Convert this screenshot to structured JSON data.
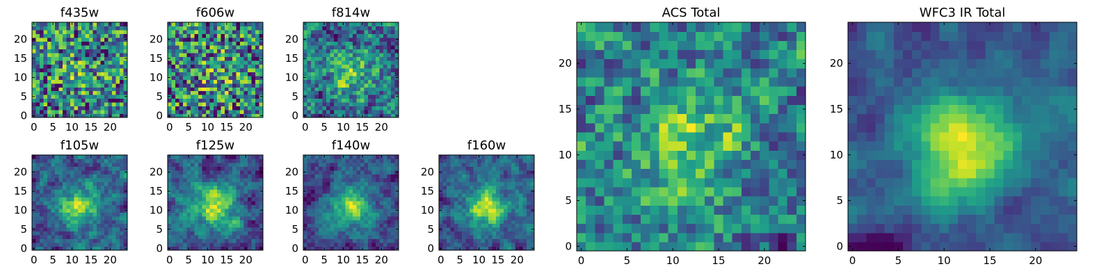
{
  "chart_data": [
    {
      "type": "heatmap",
      "title": "f435w",
      "xlim": [
        0,
        24
      ],
      "ylim": [
        0,
        24
      ],
      "xticks": [
        0,
        5,
        10,
        15,
        20
      ],
      "yticks": [
        0,
        5,
        10,
        15,
        20
      ],
      "colormap": "viridis"
    },
    {
      "type": "heatmap",
      "title": "f606w",
      "xlim": [
        0,
        24
      ],
      "ylim": [
        0,
        24
      ],
      "xticks": [
        0,
        5,
        10,
        15,
        20
      ],
      "yticks": [
        0,
        5,
        10,
        15,
        20
      ],
      "colormap": "viridis"
    },
    {
      "type": "heatmap",
      "title": "f814w",
      "xlim": [
        0,
        24
      ],
      "ylim": [
        0,
        24
      ],
      "xticks": [
        0,
        5,
        10,
        15,
        20
      ],
      "yticks": [
        0,
        5,
        10,
        15,
        20
      ],
      "colormap": "viridis"
    },
    {
      "type": "heatmap",
      "title": "f105w",
      "xlim": [
        0,
        24
      ],
      "ylim": [
        0,
        24
      ],
      "xticks": [
        0,
        5,
        10,
        15,
        20
      ],
      "yticks": [
        0,
        5,
        10,
        15,
        20
      ],
      "colormap": "viridis"
    },
    {
      "type": "heatmap",
      "title": "f125w",
      "xlim": [
        0,
        24
      ],
      "ylim": [
        0,
        24
      ],
      "xticks": [
        0,
        5,
        10,
        15,
        20
      ],
      "yticks": [
        0,
        5,
        10,
        15,
        20
      ],
      "colormap": "viridis"
    },
    {
      "type": "heatmap",
      "title": "f140w",
      "xlim": [
        0,
        24
      ],
      "ylim": [
        0,
        24
      ],
      "xticks": [
        0,
        5,
        10,
        15,
        20
      ],
      "yticks": [
        0,
        5,
        10,
        15,
        20
      ],
      "colormap": "viridis"
    },
    {
      "type": "heatmap",
      "title": "f160w",
      "xlim": [
        0,
        24
      ],
      "ylim": [
        0,
        24
      ],
      "xticks": [
        0,
        5,
        10,
        15,
        20
      ],
      "yticks": [
        0,
        5,
        10,
        15,
        20
      ],
      "colormap": "viridis"
    },
    {
      "type": "heatmap",
      "title": "ACS Total",
      "xlim": [
        0,
        24
      ],
      "ylim": [
        0,
        24
      ],
      "xticks": [
        0,
        5,
        10,
        15,
        20
      ],
      "yticks": [
        0,
        5,
        10,
        15,
        20
      ],
      "colormap": "viridis"
    },
    {
      "type": "heatmap",
      "title": "WFC3 IR Total",
      "xlim": [
        0,
        24
      ],
      "ylim": [
        0,
        24
      ],
      "xticks": [
        0,
        5,
        10,
        15,
        20
      ],
      "yticks": [
        0,
        5,
        10,
        15,
        20
      ],
      "colormap": "viridis"
    }
  ]
}
